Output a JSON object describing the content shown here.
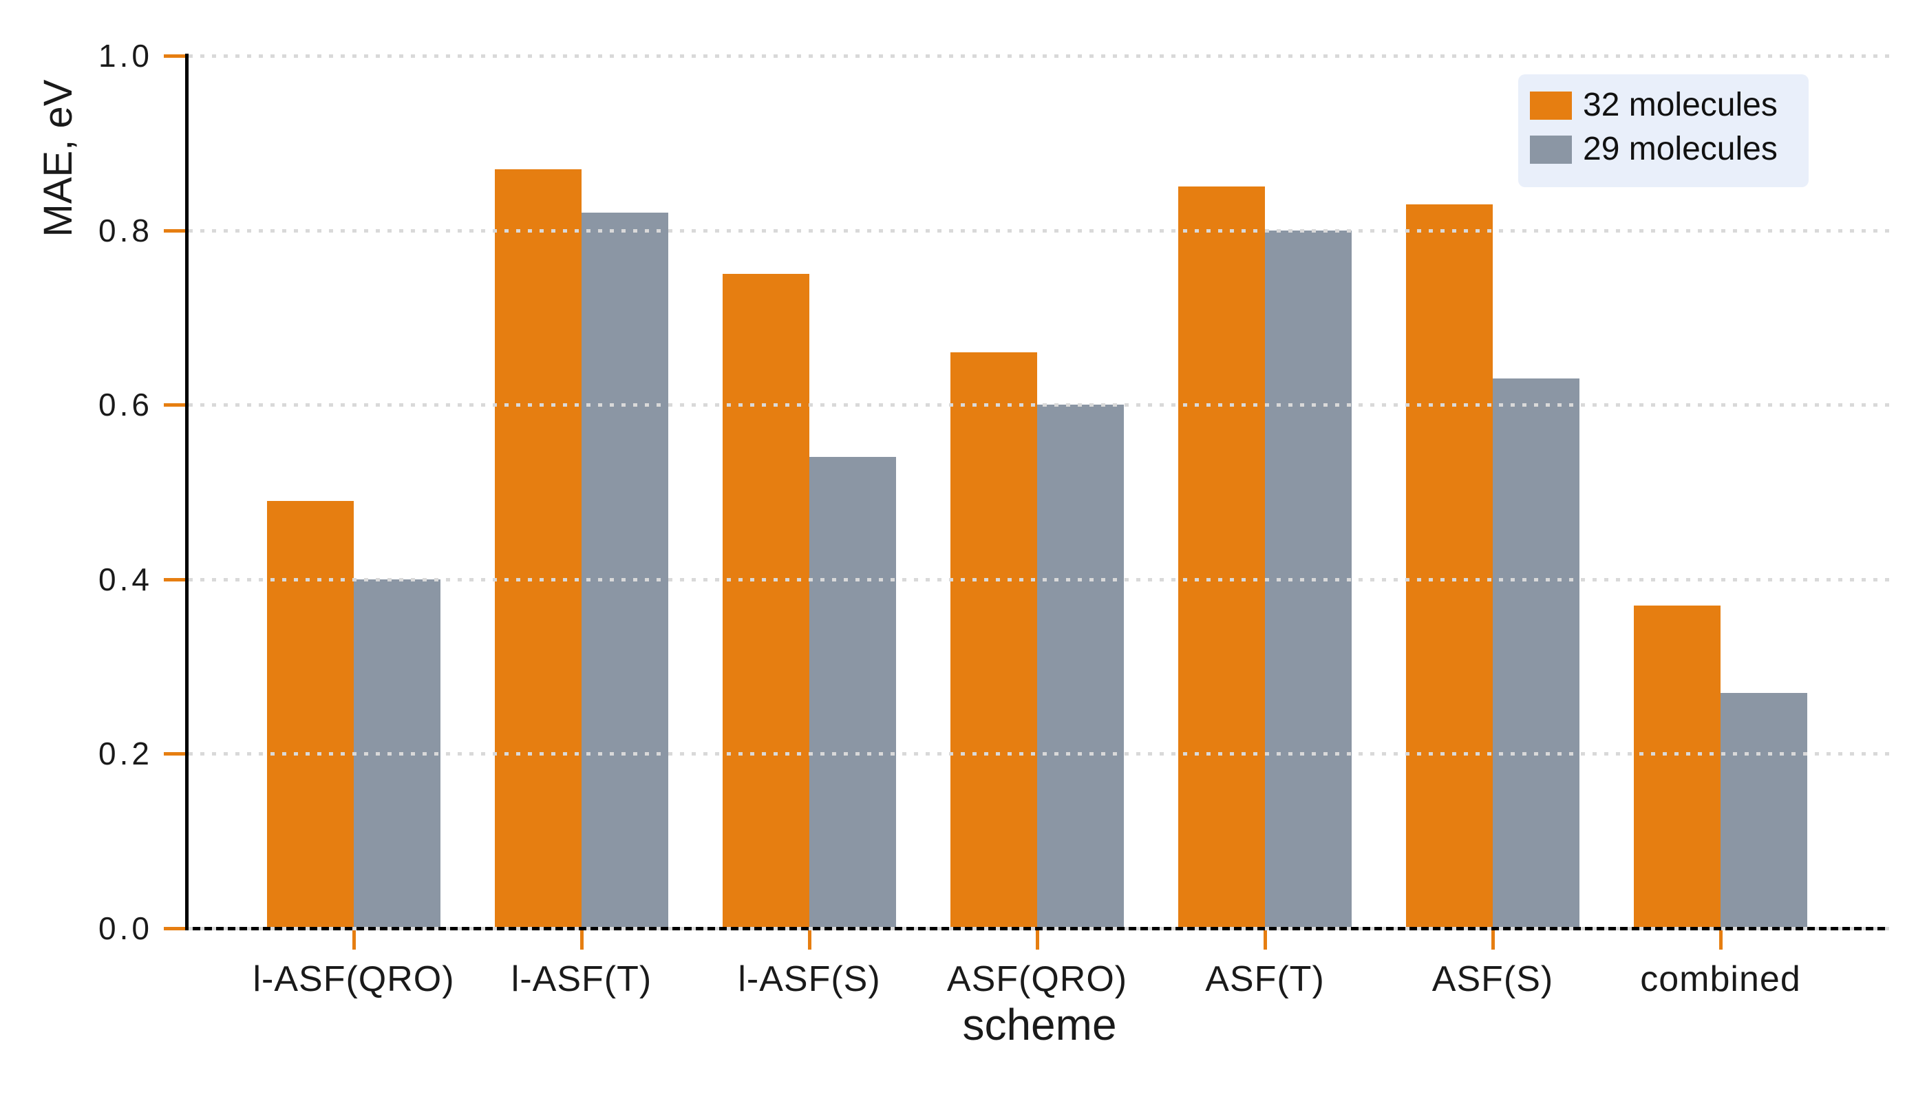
{
  "chart_data": {
    "type": "bar",
    "title": "",
    "xlabel": "scheme",
    "ylabel": "MAE, eV",
    "categories": [
      "l-ASF(QRO)",
      "l-ASF(T)",
      "l-ASF(S)",
      "ASF(QRO)",
      "ASF(T)",
      "ASF(S)",
      "combined"
    ],
    "series": [
      {
        "name": "32 molecules",
        "color": "#E67E11",
        "values": [
          0.49,
          0.87,
          0.75,
          0.66,
          0.85,
          0.83,
          0.37
        ]
      },
      {
        "name": "29 molecules",
        "color": "#8B96A4",
        "values": [
          0.4,
          0.82,
          0.54,
          0.6,
          0.8,
          0.63,
          0.27
        ]
      }
    ],
    "ylim": [
      0.0,
      1.0
    ],
    "yticks": [
      "0.0",
      "0.2",
      "0.4",
      "0.6",
      "0.8",
      "1.0"
    ],
    "grid": "horizontal-dotted",
    "gridline_color": "#d9d9d9",
    "tick_color": "#E67E11",
    "spine_color": "#000000",
    "legend_position": "upper-right",
    "legend_background": "#e9effa"
  }
}
